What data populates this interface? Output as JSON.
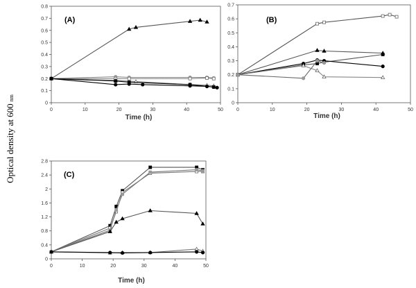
{
  "figure": {
    "ylabel": "Optical density at 600",
    "ylabel_unit": "nm"
  },
  "chart_data": [
    {
      "type": "line",
      "label": "(A)",
      "xlabel": "Time (h)",
      "ylabel": "",
      "xlim": [
        0,
        50
      ],
      "ylim": [
        0,
        0.8
      ],
      "xticks": [
        0,
        10,
        20,
        30,
        40,
        50
      ],
      "yticks": [
        0,
        0.1,
        0.2,
        0.3,
        0.4,
        0.5,
        0.6,
        0.7,
        0.8
      ],
      "grid": false,
      "series": [
        {
          "marker": "triangle",
          "fill": "#000000",
          "color": "#555555",
          "x": [
            0,
            23,
            25,
            41,
            44,
            46
          ],
          "y": [
            0.2,
            0.61,
            0.625,
            0.675,
            0.685,
            0.67
          ]
        },
        {
          "marker": "circle",
          "fill": "#999999",
          "color": "#888888",
          "x": [
            0,
            19,
            23,
            41,
            46,
            48
          ],
          "y": [
            0.2,
            0.215,
            0.21,
            0.21,
            0.21,
            0.205
          ]
        },
        {
          "marker": "square",
          "fill": "#ffffff",
          "color": "#888888",
          "x": [
            0,
            19,
            23,
            41,
            46,
            48
          ],
          "y": [
            0.2,
            0.2,
            0.2,
            0.2,
            0.205,
            0.2
          ]
        },
        {
          "marker": "triangle",
          "fill": "#ffffff",
          "color": "#777777",
          "x": [
            0,
            19,
            25,
            41,
            46,
            48
          ],
          "y": [
            0.2,
            0.185,
            0.175,
            0.15,
            0.145,
            0.14
          ]
        },
        {
          "marker": "circle",
          "fill": "#000000",
          "color": "#000000",
          "x": [
            0,
            19,
            23,
            27,
            41,
            46,
            48,
            49
          ],
          "y": [
            0.2,
            0.15,
            0.155,
            0.15,
            0.14,
            0.135,
            0.13,
            0.125
          ]
        },
        {
          "marker": "square",
          "fill": "#000000",
          "color": "#000000",
          "x": [
            0,
            19,
            23,
            41,
            48
          ],
          "y": [
            0.2,
            0.18,
            0.17,
            0.15,
            0.13
          ]
        }
      ]
    },
    {
      "type": "line",
      "label": "(B)",
      "xlabel": "Time (h)",
      "ylabel": "",
      "xlim": [
        0,
        50
      ],
      "ylim": [
        0,
        0.7
      ],
      "xticks": [
        0,
        10,
        20,
        30,
        40,
        50
      ],
      "yticks": [
        0,
        0.1,
        0.2,
        0.3,
        0.4,
        0.5,
        0.6,
        0.7
      ],
      "grid": false,
      "series": [
        {
          "marker": "square",
          "fill": "#ffffff",
          "color": "#555555",
          "x": [
            0,
            23,
            25,
            42,
            44,
            46
          ],
          "y": [
            0.2,
            0.565,
            0.575,
            0.62,
            0.63,
            0.615
          ]
        },
        {
          "marker": "triangle",
          "fill": "#000000",
          "color": "#555555",
          "x": [
            0,
            23,
            25,
            42
          ],
          "y": [
            0.2,
            0.375,
            0.37,
            0.355
          ]
        },
        {
          "marker": "square",
          "fill": "#000000",
          "color": "#555555",
          "x": [
            0,
            19,
            23,
            25,
            42
          ],
          "y": [
            0.2,
            0.27,
            0.28,
            0.29,
            0.345
          ]
        },
        {
          "marker": "circle",
          "fill": "#000000",
          "color": "#000000",
          "x": [
            0,
            19,
            23,
            25,
            42
          ],
          "y": [
            0.2,
            0.28,
            0.305,
            0.3,
            0.26
          ]
        },
        {
          "marker": "triangle",
          "fill": "#ffffff",
          "color": "#888888",
          "x": [
            0,
            19,
            23,
            25,
            42
          ],
          "y": [
            0.2,
            0.265,
            0.23,
            0.185,
            0.18
          ]
        },
        {
          "marker": "circle",
          "fill": "#999999",
          "color": "#666666",
          "x": [
            0,
            19,
            23,
            25
          ],
          "y": [
            0.2,
            0.175,
            0.3,
            0.285
          ]
        }
      ]
    },
    {
      "type": "line",
      "label": "(C)",
      "xlabel": "Time (h)",
      "ylabel": "",
      "xlim": [
        0,
        50
      ],
      "ylim": [
        0,
        2.8
      ],
      "xticks": [
        0,
        10,
        20,
        30,
        40,
        50
      ],
      "yticks": [
        0,
        0.4,
        0.8,
        1.2,
        1.6,
        2,
        2.4,
        2.8
      ],
      "grid": false,
      "series": [
        {
          "marker": "square",
          "fill": "#000000",
          "color": "#555555",
          "x": [
            0,
            19,
            21,
            23,
            32,
            47,
            49
          ],
          "y": [
            0.2,
            0.95,
            1.5,
            1.95,
            2.62,
            2.62,
            2.55
          ]
        },
        {
          "marker": "square",
          "fill": "#ffffff",
          "color": "#777777",
          "x": [
            0,
            19,
            21,
            23,
            32,
            47,
            49
          ],
          "y": [
            0.2,
            0.88,
            1.35,
            1.9,
            2.45,
            2.5,
            2.5
          ]
        },
        {
          "marker": "square",
          "fill": "#999999",
          "color": "#777777",
          "x": [
            0,
            19,
            21,
            23,
            32,
            47,
            49
          ],
          "y": [
            0.2,
            0.82,
            1.4,
            1.85,
            2.48,
            2.55,
            2.52
          ]
        },
        {
          "marker": "triangle",
          "fill": "#000000",
          "color": "#555555",
          "x": [
            0,
            19,
            21,
            23,
            32,
            47,
            49
          ],
          "y": [
            0.2,
            0.78,
            1.05,
            1.15,
            1.38,
            1.3,
            1.0
          ]
        },
        {
          "marker": "triangle",
          "fill": "#ffffff",
          "color": "#777777",
          "x": [
            0,
            19,
            23,
            32,
            47,
            49
          ],
          "y": [
            0.2,
            0.17,
            0.18,
            0.18,
            0.28,
            0.22
          ]
        },
        {
          "marker": "circle",
          "fill": "#000000",
          "color": "#000000",
          "x": [
            0,
            19,
            23,
            32,
            47,
            49
          ],
          "y": [
            0.2,
            0.18,
            0.17,
            0.18,
            0.2,
            0.18
          ]
        }
      ]
    }
  ]
}
